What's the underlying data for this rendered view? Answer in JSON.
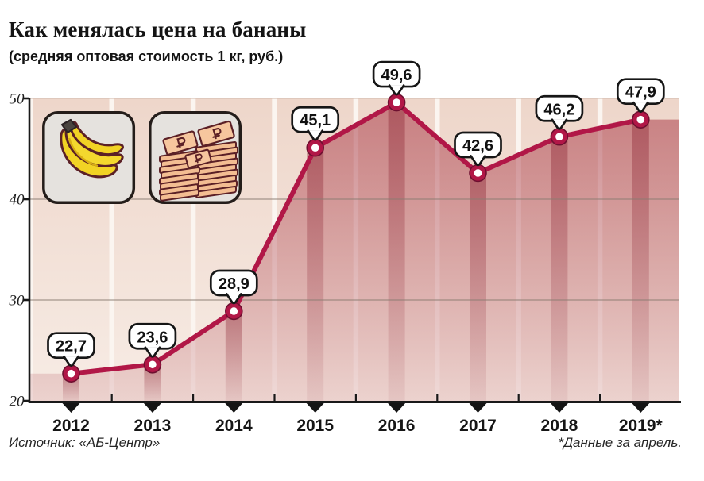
{
  "header": {
    "title": "Как менялась цена на бананы",
    "subtitle": "(средняя оптовая стоимость 1 кг, руб.)"
  },
  "footer": {
    "source": "Источник: «АБ-Центр»",
    "footnote": "*Данные за апрель."
  },
  "icons": [
    {
      "name": "bananas-icon"
    },
    {
      "name": "ruble-money-stacks-icon"
    }
  ],
  "chart_data": {
    "type": "line",
    "title": "Как менялась цена на бананы",
    "subtitle": "(средняя оптовая стоимость 1 кг, руб.)",
    "categories": [
      "2012",
      "2013",
      "2014",
      "2015",
      "2016",
      "2017",
      "2018",
      "2019*"
    ],
    "values": [
      22.7,
      23.6,
      28.9,
      45.1,
      49.6,
      42.6,
      46.2,
      47.9
    ],
    "point_labels": [
      "22,7",
      "23,6",
      "28,9",
      "45,1",
      "49,6",
      "42,6",
      "46,2",
      "47,9"
    ],
    "ylim": [
      20,
      50
    ],
    "yticks": [
      20,
      30,
      40,
      50
    ],
    "ytick_labels": [
      "20",
      "30",
      "40",
      "50"
    ],
    "grid": "horizontal",
    "legend": "none",
    "colors": {
      "line": "#b11747",
      "marker_fill": "#ffffff",
      "marker_edge": "#6e0f30",
      "band_top": "#eed6ca",
      "band_bottom": "#f7ece5",
      "gap": "#fbf5f0",
      "area_rgb": "176,73,84",
      "strip_rgb": "139,35,50",
      "grid": "#8a7c72",
      "top_edge": "#d0bbae",
      "axis": "#191919",
      "callout_border": "#161616"
    }
  }
}
